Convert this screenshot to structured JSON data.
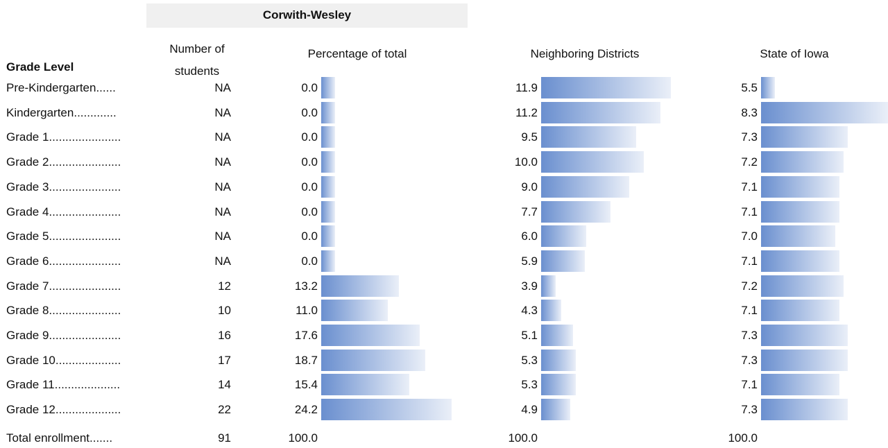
{
  "header": {
    "group": "Corwith-Wesley",
    "columns": {
      "grade": "Grade Level",
      "count": "Number of students",
      "pct": "Percentage of total",
      "neighbor": "Neighboring Districts",
      "state": "State of Iowa"
    }
  },
  "rows": [
    {
      "label": "Pre-Kindergarten......",
      "count": "NA",
      "pct": "0.0",
      "neighbor": "11.9",
      "state": "5.5"
    },
    {
      "label": "Kindergarten.............",
      "count": "NA",
      "pct": "0.0",
      "neighbor": "11.2",
      "state": "8.3"
    },
    {
      "label": "Grade 1......................",
      "count": "NA",
      "pct": "0.0",
      "neighbor": "9.5",
      "state": "7.3"
    },
    {
      "label": "Grade 2......................",
      "count": "NA",
      "pct": "0.0",
      "neighbor": "10.0",
      "state": "7.2"
    },
    {
      "label": "Grade 3......................",
      "count": "NA",
      "pct": "0.0",
      "neighbor": "9.0",
      "state": "7.1"
    },
    {
      "label": "Grade 4......................",
      "count": "NA",
      "pct": "0.0",
      "neighbor": "7.7",
      "state": "7.1"
    },
    {
      "label": "Grade 5......................",
      "count": "NA",
      "pct": "0.0",
      "neighbor": "6.0",
      "state": "7.0"
    },
    {
      "label": "Grade 6......................",
      "count": "NA",
      "pct": "0.0",
      "neighbor": "5.9",
      "state": "7.1"
    },
    {
      "label": "Grade 7......................",
      "count": "12",
      "pct": "13.2",
      "neighbor": "3.9",
      "state": "7.2"
    },
    {
      "label": "Grade 8......................",
      "count": "10",
      "pct": "11.0",
      "neighbor": "4.3",
      "state": "7.1"
    },
    {
      "label": "Grade 9......................",
      "count": "16",
      "pct": "17.6",
      "neighbor": "5.1",
      "state": "7.3"
    },
    {
      "label": "Grade 10....................",
      "count": "17",
      "pct": "18.7",
      "neighbor": "5.3",
      "state": "7.3"
    },
    {
      "label": "Grade 11....................",
      "count": "14",
      "pct": "15.4",
      "neighbor": "5.3",
      "state": "7.1"
    },
    {
      "label": "Grade 12....................",
      "count": "22",
      "pct": "24.2",
      "neighbor": "4.9",
      "state": "7.3"
    }
  ],
  "total": {
    "label": "Total enrollment.......",
    "count": "91",
    "pct": "100.0",
    "neighbor": "100.0",
    "state": "100.0"
  }
}
